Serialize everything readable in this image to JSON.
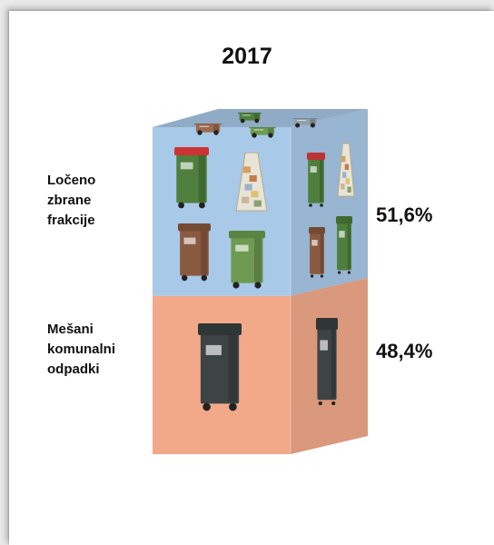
{
  "chart_data": {
    "type": "bar",
    "title": "2017",
    "categories": [
      "Ločeno zbrane frakcije",
      "Mešani komunalni odpadki"
    ],
    "category_lines": [
      [
        "Ločeno",
        "zbrane",
        "frakcije"
      ],
      [
        "Mešani",
        "komunalni",
        "odpadki"
      ]
    ],
    "values": [
      51.6,
      48.4
    ],
    "value_labels": [
      "51,6%",
      "48,4%"
    ],
    "unit": "%",
    "stacked": true,
    "colors": [
      "#a9c9e8",
      "#f2a98a"
    ],
    "icons": [
      "green-waste-bin-icon",
      "brown-waste-bin-icon",
      "packaging-bag-icon",
      "black-waste-bin-icon"
    ]
  }
}
